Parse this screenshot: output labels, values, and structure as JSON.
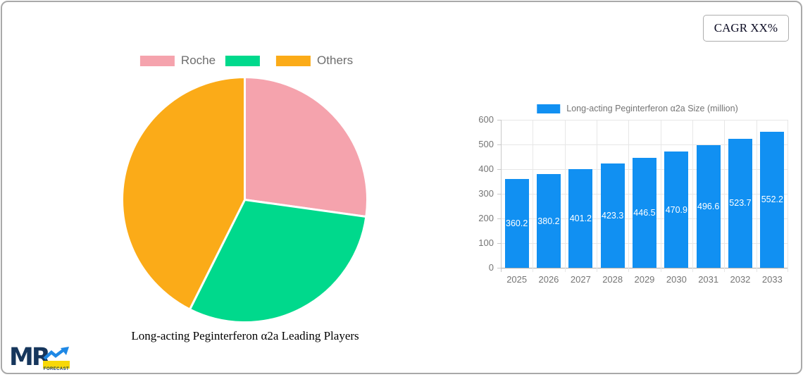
{
  "cagr_button": {
    "label": "CAGR XX%"
  },
  "chart_data": [
    {
      "type": "pie",
      "title": "Long-acting Peginterferon α2a Leading Players",
      "legend_position": "top",
      "slices": [
        {
          "label": "Roche",
          "value": 27.2,
          "color": "#F5A3AD"
        },
        {
          "label": "",
          "value": 30.2,
          "color": "#00D98C"
        },
        {
          "label": "Others",
          "value": 42.6,
          "color": "#FBAB18"
        }
      ],
      "separator_color": "#FFFFFF",
      "legend_text_color": "#6E6E6E"
    },
    {
      "type": "bar",
      "legend": "Long-acting Peginterferon α2a Size (million)",
      "categories": [
        "2025",
        "2026",
        "2027",
        "2028",
        "2029",
        "2030",
        "2031",
        "2032",
        "2033"
      ],
      "values": [
        360.2,
        380.2,
        401.2,
        423.3,
        446.5,
        470.9,
        496.6,
        523.7,
        552.2
      ],
      "ylim": [
        0,
        600
      ],
      "ytick_step": 100,
      "grid": true,
      "bar_color": "#1190F2",
      "value_label_color": "#FFFFFF",
      "axis_text_color": "#757575"
    }
  ],
  "logo": {
    "text": "MR",
    "sub": "FORECAST",
    "navy": "#16365C",
    "arrow_blue": "#1E88E5",
    "yellow": "#F7D808"
  }
}
